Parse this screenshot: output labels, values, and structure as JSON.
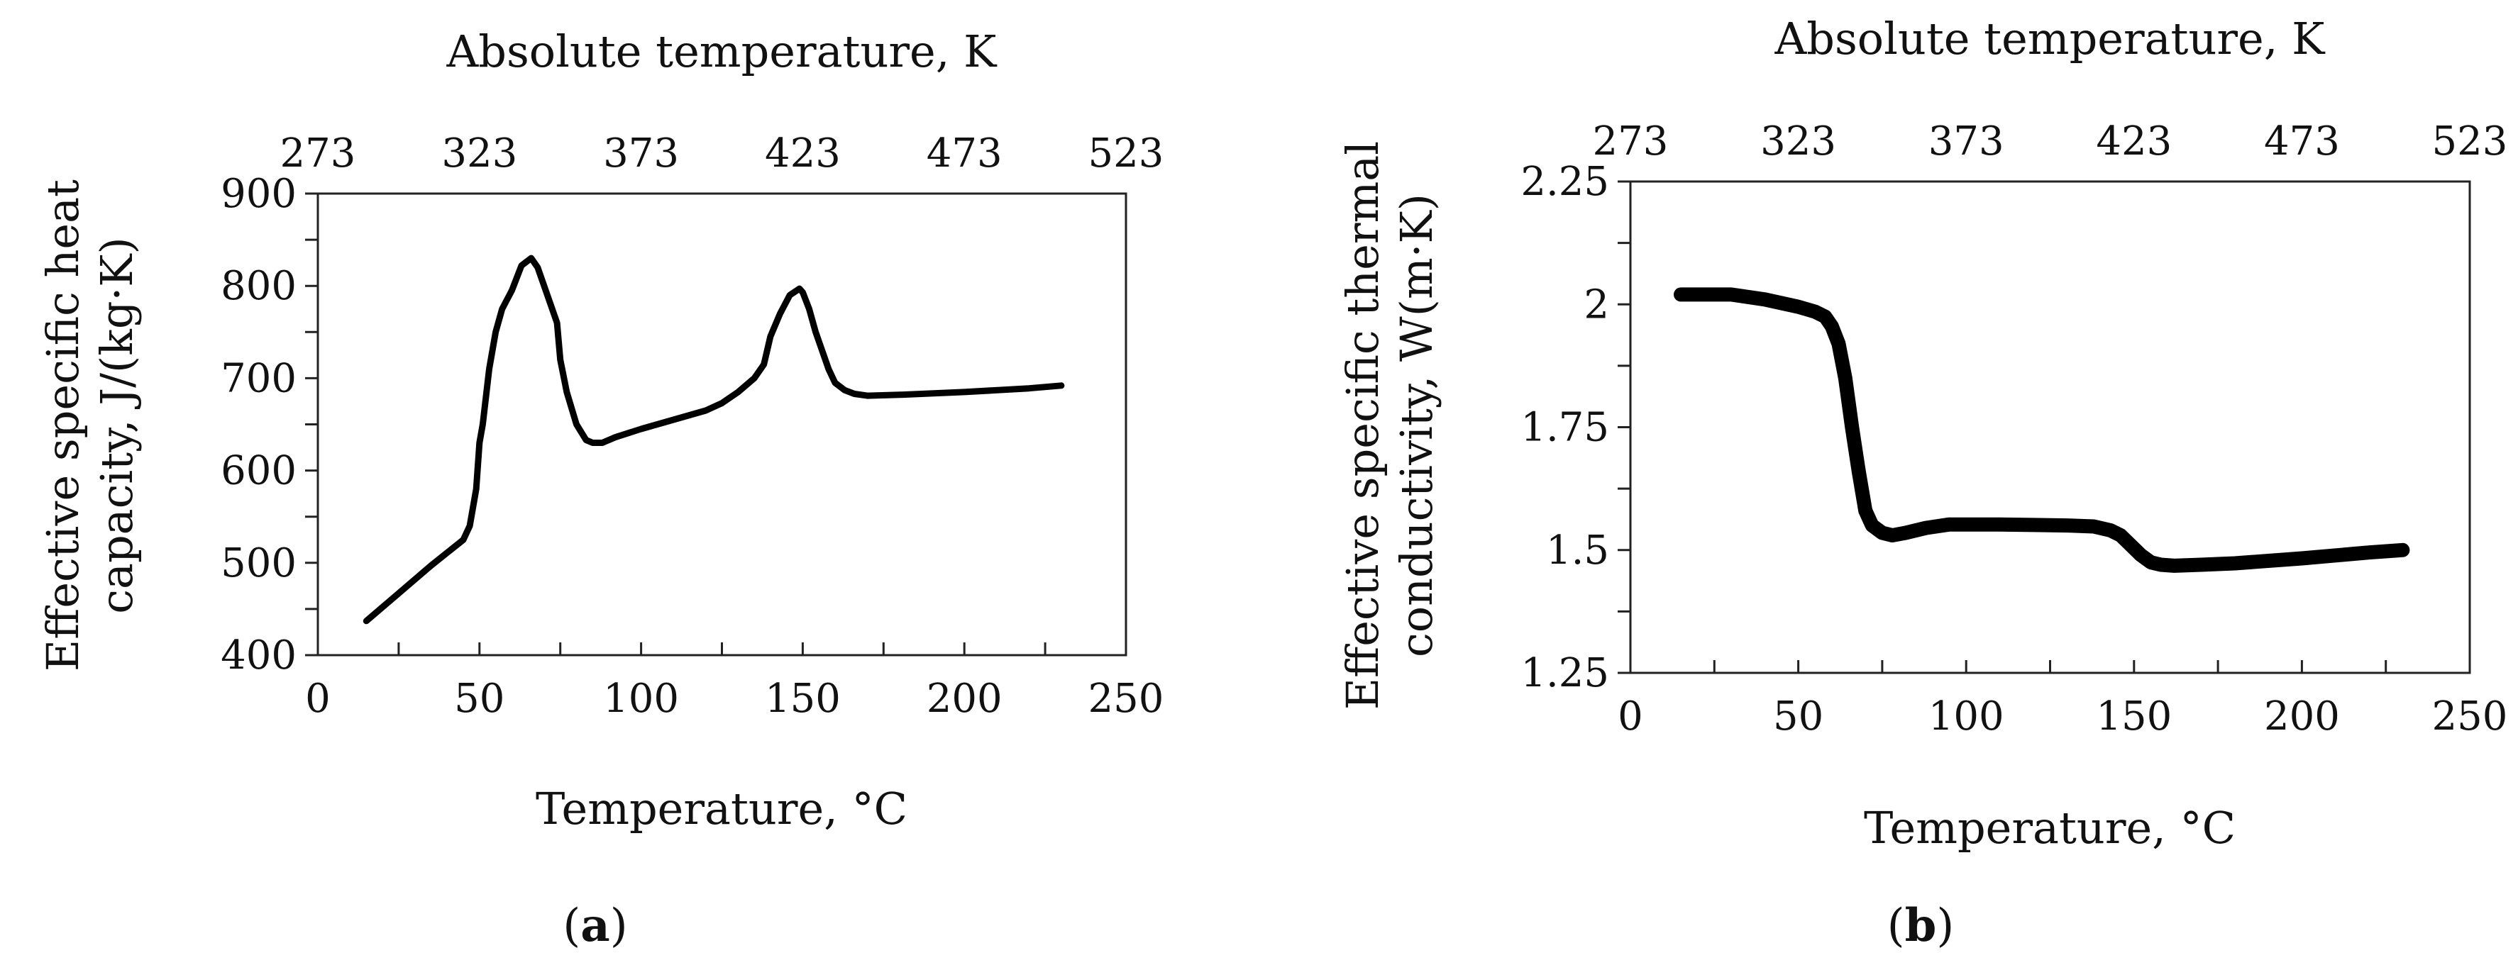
{
  "chart_data": [
    {
      "type": "line",
      "panel": "(a)",
      "panel_letter": "a",
      "xlabel": "Temperature, °C",
      "x2label": "Absolute temperature, K",
      "ylabel_lines": [
        "Effective specific heat",
        "capacity, J/(kg·K)"
      ],
      "xlim": [
        0,
        250
      ],
      "ylim": [
        400,
        900
      ],
      "x_ticks": [
        0,
        50,
        100,
        150,
        200,
        250
      ],
      "x_tick_labels": [
        "0",
        "50",
        "100",
        "150",
        "200",
        "250"
      ],
      "x2_ticks": [
        273,
        323,
        373,
        423,
        473,
        523
      ],
      "x2_tick_labels": [
        "273",
        "323",
        "373",
        "423",
        "473",
        "523"
      ],
      "y_ticks": [
        400,
        500,
        600,
        700,
        800,
        900
      ],
      "y_tick_labels": [
        "400",
        "500",
        "600",
        "700",
        "800",
        "900"
      ],
      "grid": false,
      "line_color": "#000000",
      "series": [
        {
          "x": [
            15,
            25,
            35,
            45,
            47,
            49,
            50,
            51,
            53,
            55,
            57,
            60,
            63,
            66,
            68,
            70,
            72,
            74,
            75,
            77,
            80,
            83,
            85,
            88,
            92,
            100,
            110,
            120,
            125,
            130,
            135,
            138,
            140,
            143,
            146,
            149,
            150,
            152,
            154,
            156,
            158,
            160,
            163,
            166,
            170,
            180,
            200,
            220,
            230
          ],
          "y": [
            437,
            467,
            497,
            525,
            540,
            580,
            630,
            650,
            710,
            750,
            775,
            795,
            822,
            830,
            820,
            800,
            780,
            760,
            720,
            685,
            650,
            633,
            630,
            630,
            636,
            645,
            655,
            665,
            673,
            685,
            700,
            715,
            745,
            770,
            790,
            797,
            793,
            775,
            750,
            730,
            710,
            695,
            687,
            683,
            681,
            682,
            685,
            689,
            692
          ]
        }
      ]
    },
    {
      "type": "line",
      "panel": "(b)",
      "panel_letter": "b",
      "xlabel": "Temperature, °C",
      "x2label": "Absolute temperature, K",
      "ylabel_lines": [
        "Effective specific thermal",
        "conductivity, W(m·K)"
      ],
      "xlim": [
        0,
        250
      ],
      "ylim": [
        1.25,
        2.25
      ],
      "x_ticks": [
        0,
        50,
        100,
        150,
        200,
        250
      ],
      "x_tick_labels": [
        "0",
        "50",
        "100",
        "150",
        "200",
        "250"
      ],
      "x2_ticks": [
        273,
        323,
        373,
        423,
        473,
        523
      ],
      "x2_tick_labels": [
        "273",
        "323",
        "373",
        "423",
        "473",
        "523"
      ],
      "y_ticks": [
        1.25,
        1.5,
        1.75,
        2.0,
        2.25
      ],
      "y_tick_labels": [
        "1.25",
        "1.5",
        "1.75",
        "2",
        "2.25"
      ],
      "grid": false,
      "line_color": "#000000",
      "series": [
        {
          "x": [
            15,
            30,
            40,
            50,
            55,
            58,
            60,
            62,
            64,
            66,
            68,
            70,
            72,
            75,
            78,
            82,
            88,
            95,
            100,
            110,
            120,
            130,
            138,
            143,
            146,
            149,
            152,
            155,
            158,
            162,
            170,
            180,
            200,
            220,
            230
          ],
          "y": [
            2.02,
            2.02,
            2.01,
            1.995,
            1.985,
            1.975,
            1.955,
            1.92,
            1.85,
            1.75,
            1.66,
            1.58,
            1.55,
            1.535,
            1.53,
            1.535,
            1.545,
            1.552,
            1.552,
            1.552,
            1.551,
            1.55,
            1.548,
            1.54,
            1.53,
            1.51,
            1.49,
            1.475,
            1.47,
            1.468,
            1.47,
            1.473,
            1.483,
            1.495,
            1.5
          ]
        }
      ]
    }
  ]
}
